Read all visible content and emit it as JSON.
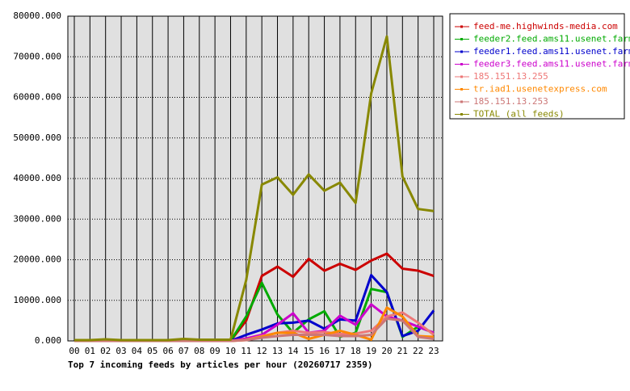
{
  "chart_data": {
    "type": "line",
    "title": "Top 7 incoming feeds by articles per hour (20260717 2359)",
    "categories": [
      "00",
      "01",
      "02",
      "03",
      "04",
      "05",
      "06",
      "07",
      "08",
      "09",
      "10",
      "11",
      "12",
      "13",
      "14",
      "15",
      "16",
      "17",
      "18",
      "19",
      "20",
      "21",
      "22",
      "23"
    ],
    "ylim": [
      0,
      80000
    ],
    "yticks": [
      {
        "value": 0,
        "label": "0.000"
      },
      {
        "value": 10000,
        "label": "10000.000"
      },
      {
        "value": 20000,
        "label": "20000.000"
      },
      {
        "value": 30000,
        "label": "30000.000"
      },
      {
        "value": 40000,
        "label": "40000.000"
      },
      {
        "value": 50000,
        "label": "50000.000"
      },
      {
        "value": 60000,
        "label": "60000.000"
      },
      {
        "value": 70000,
        "label": "70000.000"
      },
      {
        "value": 80000,
        "label": "80000.000"
      }
    ],
    "grid": true,
    "legend": "right",
    "series": [
      {
        "name": "feed-me.highwinds-media.com",
        "color": "#cc0000",
        "values": [
          0,
          0,
          0,
          0,
          0,
          0,
          0,
          0,
          0,
          0,
          0,
          5000,
          16000,
          18300,
          15800,
          20200,
          17300,
          19000,
          17500,
          19800,
          21500,
          17800,
          17300,
          16000
        ]
      },
      {
        "name": "feeder2.feed.ams11.usenet.farm",
        "color": "#00aa00",
        "values": [
          0,
          0,
          0,
          0,
          0,
          0,
          0,
          0,
          0,
          0,
          0,
          6000,
          14300,
          6500,
          2000,
          5300,
          7300,
          1000,
          2000,
          12800,
          12000,
          1000,
          3500,
          2000
        ]
      },
      {
        "name": "feeder1.feed.ams11.usenet.farm",
        "color": "#0000cc",
        "values": [
          0,
          0,
          0,
          0,
          0,
          0,
          0,
          0,
          0,
          0,
          0,
          1500,
          2800,
          4300,
          4500,
          5000,
          3000,
          5300,
          5000,
          16200,
          12000,
          1200,
          2500,
          7500
        ]
      },
      {
        "name": "feeder3.feed.ams11.usenet.farm",
        "color": "#cc00cc",
        "values": [
          0,
          0,
          0,
          0,
          0,
          0,
          0,
          0,
          0,
          0,
          0,
          600,
          1500,
          4000,
          6800,
          2000,
          2500,
          6200,
          4000,
          9000,
          6000,
          5000,
          3500,
          2000
        ]
      },
      {
        "name": "185.151.13.255",
        "color": "#ee7777",
        "values": [
          0,
          0,
          0,
          0,
          0,
          0,
          0,
          0,
          0,
          0,
          0,
          300,
          1200,
          2000,
          2500,
          2000,
          2200,
          1700,
          1800,
          2500,
          6000,
          7000,
          4500,
          1500
        ]
      },
      {
        "name": "tr.iad1.usenetexpress.com",
        "color": "#ff8800",
        "values": [
          0,
          0,
          0,
          0,
          0,
          0,
          0,
          0,
          0,
          0,
          0,
          200,
          1000,
          2000,
          2000,
          500,
          1500,
          2500,
          1500,
          300,
          8200,
          6000,
          1200,
          1000
        ]
      },
      {
        "name": "185.151.13.253",
        "color": "#cc7777",
        "values": [
          0,
          0,
          0,
          0,
          0,
          0,
          0,
          0,
          0,
          0,
          0,
          200,
          800,
          1200,
          1500,
          1500,
          1500,
          1200,
          1200,
          1500,
          5500,
          5000,
          1000,
          500
        ]
      },
      {
        "name": "TOTAL (all feeds)",
        "color": "#888800",
        "values": [
          200,
          200,
          400,
          200,
          200,
          200,
          200,
          500,
          300,
          300,
          300,
          15000,
          38500,
          40300,
          36000,
          41000,
          37000,
          39000,
          34000,
          61000,
          75000,
          40500,
          32500,
          32000
        ]
      }
    ]
  }
}
